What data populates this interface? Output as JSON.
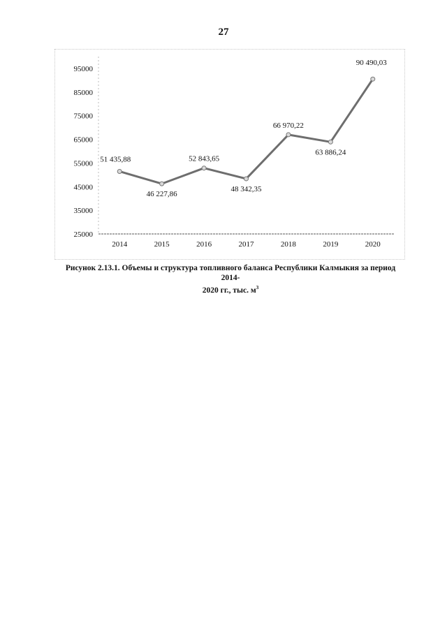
{
  "page": {
    "number": "27"
  },
  "caption": {
    "line1": "Рисунок 2.13.1. Объемы и структура топливного баланса Республики Калмыкия за период 2014-",
    "line2": "2020 гг., тыс. м",
    "superscript": "3"
  },
  "chart_data": {
    "type": "line",
    "title": "",
    "xlabel": "",
    "ylabel": "",
    "categories": [
      "2014",
      "2015",
      "2016",
      "2017",
      "2018",
      "2019",
      "2020"
    ],
    "values": [
      51435.88,
      46227.86,
      52843.65,
      48342.35,
      66970.22,
      63886.24,
      90490.03
    ],
    "data_labels": [
      "51 435,88",
      "46 227,86",
      "52 843,65",
      "48 342,35",
      "66 970,22",
      "63 886,24",
      "90 490,03"
    ],
    "label_positions": [
      "left",
      "below",
      "above",
      "below",
      "above",
      "below",
      "above"
    ],
    "yticks": [
      25000,
      35000,
      45000,
      55000,
      65000,
      75000,
      85000,
      95000
    ],
    "ytick_labels": [
      "25000",
      "35000",
      "45000",
      "55000",
      "65000",
      "75000",
      "85000",
      "95000"
    ],
    "ylim": [
      25000,
      100000
    ],
    "grid": false,
    "colors": {
      "line": "#6e6e6e",
      "marker": "#d9d9d9",
      "axis": "#555555"
    }
  }
}
